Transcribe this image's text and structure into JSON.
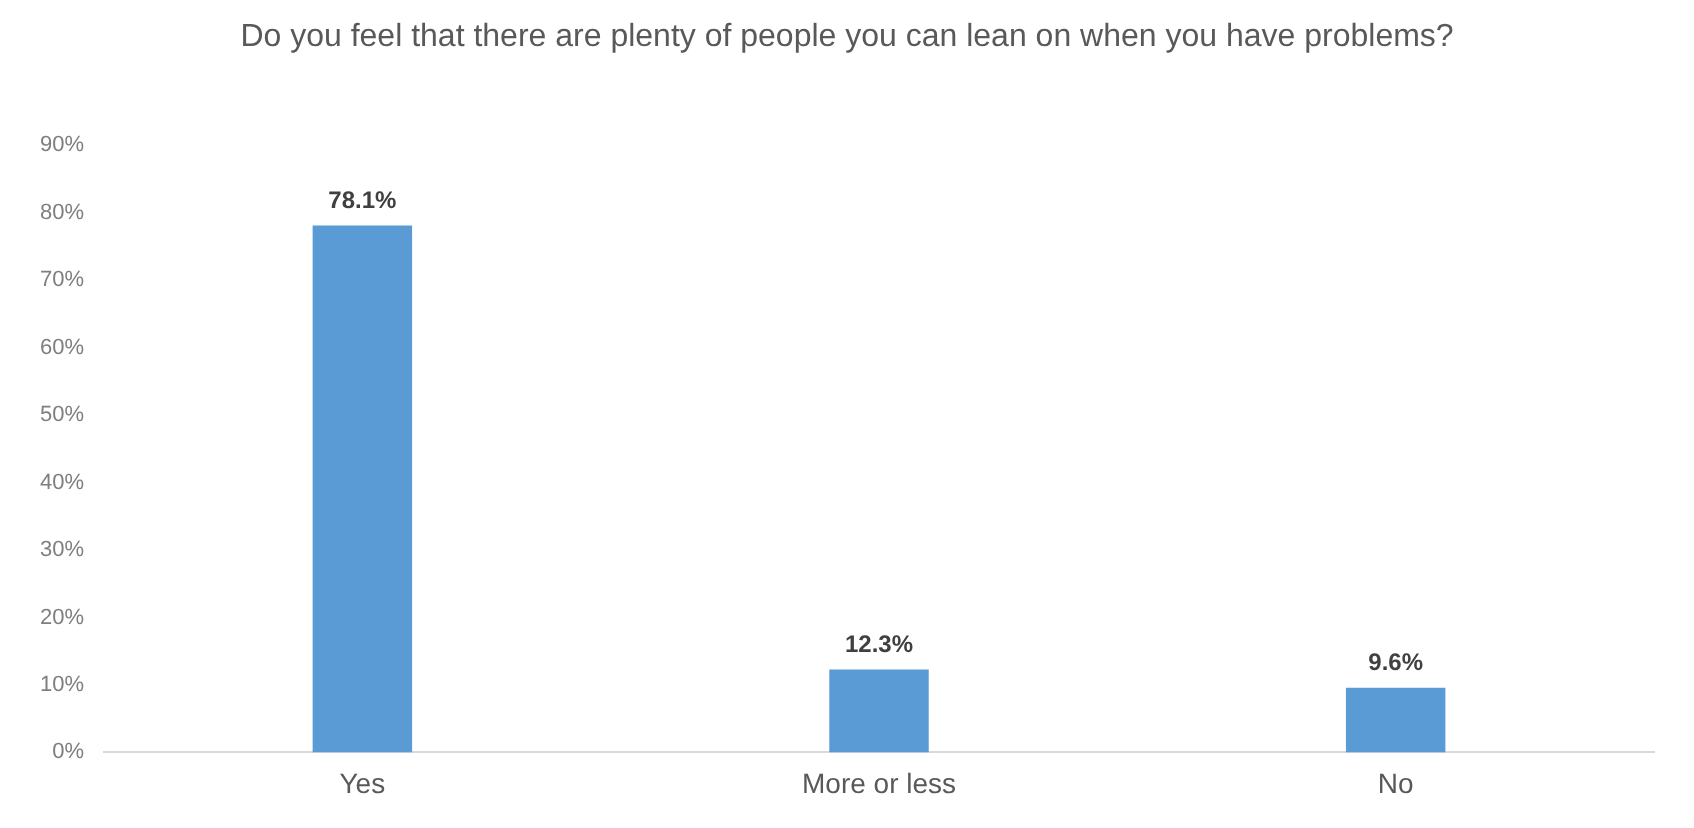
{
  "chart_data": {
    "type": "bar",
    "title": "Do you feel that there are plenty of people you can lean on when you have problems?",
    "categories": [
      "Yes",
      "More or less",
      "No"
    ],
    "values": [
      78.1,
      12.3,
      9.6
    ],
    "value_labels": [
      "78.1%",
      "12.3%",
      "9.6%"
    ],
    "color": "#5b9bd5",
    "ylim": [
      0,
      90
    ],
    "yticks": [
      {
        "value": 0,
        "label": "0%"
      },
      {
        "value": 10,
        "label": "10%"
      },
      {
        "value": 20,
        "label": "20%"
      },
      {
        "value": 30,
        "label": "30%"
      },
      {
        "value": 40,
        "label": "40%"
      },
      {
        "value": 50,
        "label": "50%"
      },
      {
        "value": 60,
        "label": "60%"
      },
      {
        "value": 70,
        "label": "70%"
      },
      {
        "value": 80,
        "label": "80%"
      },
      {
        "value": 90,
        "label": "90%"
      }
    ],
    "grid": false,
    "legend": false
  }
}
